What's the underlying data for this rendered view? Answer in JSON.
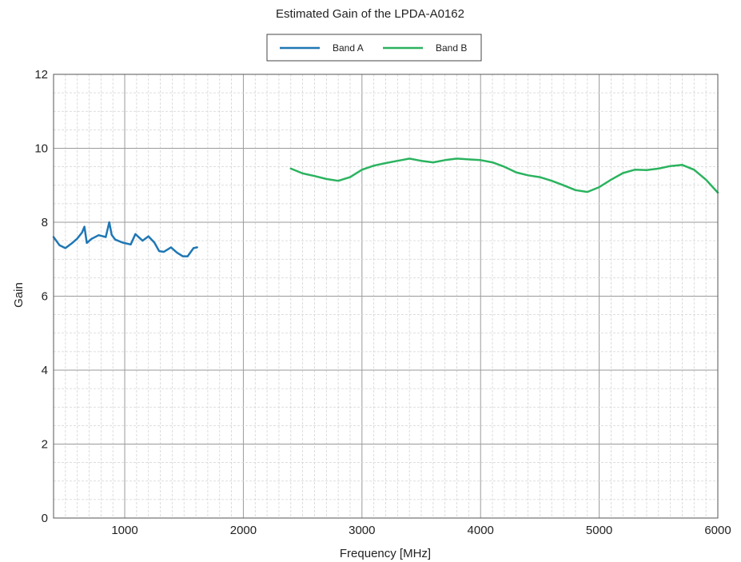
{
  "chart_data": {
    "type": "line",
    "title": "Estimated Gain of the LPDA-A0162",
    "xlabel": "Frequency [MHz]",
    "ylabel": "Gain",
    "xlim": [
      400,
      6000
    ],
    "ylim": [
      0,
      12
    ],
    "xticks": [
      1000,
      2000,
      3000,
      4000,
      5000,
      6000
    ],
    "yticks": [
      0,
      2,
      4,
      6,
      8,
      10,
      12
    ],
    "grid": true,
    "legend": "top-center",
    "series": [
      {
        "name": "Band A",
        "color": "#1f77b4",
        "x": [
          400,
          450,
          500,
          550,
          600,
          640,
          660,
          680,
          720,
          780,
          840,
          870,
          890,
          920,
          980,
          1050,
          1090,
          1150,
          1200,
          1250,
          1290,
          1330,
          1390,
          1440,
          1490,
          1530,
          1580,
          1610
        ],
        "y": [
          7.6,
          7.38,
          7.3,
          7.42,
          7.56,
          7.72,
          7.88,
          7.44,
          7.55,
          7.65,
          7.6,
          8.0,
          7.66,
          7.53,
          7.45,
          7.4,
          7.68,
          7.5,
          7.62,
          7.45,
          7.22,
          7.2,
          7.32,
          7.18,
          7.08,
          7.08,
          7.3,
          7.32
        ]
      },
      {
        "name": "Band B",
        "color": "#2bb35f",
        "x": [
          2400,
          2500,
          2600,
          2700,
          2800,
          2900,
          3000,
          3100,
          3200,
          3300,
          3400,
          3500,
          3600,
          3700,
          3800,
          3900,
          4000,
          4100,
          4200,
          4300,
          4400,
          4500,
          4600,
          4700,
          4800,
          4900,
          5000,
          5100,
          5200,
          5300,
          5400,
          5500,
          5600,
          5700,
          5800,
          5900,
          6000
        ],
        "y": [
          9.45,
          9.32,
          9.25,
          9.17,
          9.12,
          9.22,
          9.42,
          9.53,
          9.6,
          9.66,
          9.72,
          9.66,
          9.62,
          9.68,
          9.72,
          9.7,
          9.68,
          9.62,
          9.5,
          9.35,
          9.27,
          9.22,
          9.12,
          9.0,
          8.87,
          8.82,
          8.95,
          9.15,
          9.33,
          9.42,
          9.41,
          9.45,
          9.52,
          9.55,
          9.42,
          9.15,
          8.8
        ]
      }
    ]
  }
}
